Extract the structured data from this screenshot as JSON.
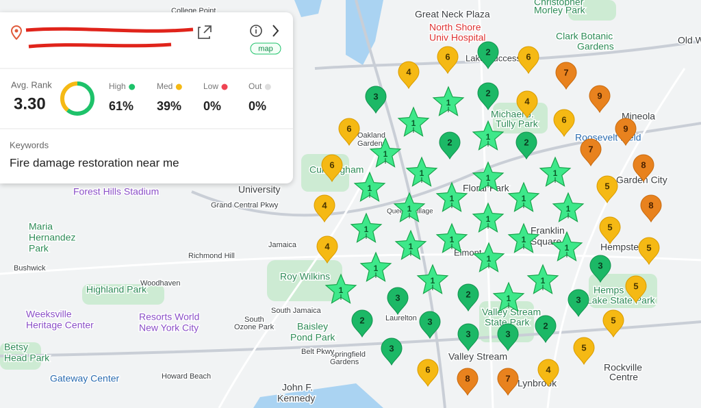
{
  "card": {
    "address_button": "map",
    "avg_rank_label": "Avg. Rank",
    "avg_rank": "3.30",
    "stats": [
      {
        "label": "High",
        "value": 61,
        "value_label": "61%",
        "color": "#1ec26a"
      },
      {
        "label": "Med",
        "value": 39,
        "value_label": "39%",
        "color": "#f5b914"
      },
      {
        "label": "Low",
        "value": 0,
        "value_label": "0%",
        "color": "#ef4453"
      },
      {
        "label": "Out",
        "value": 0,
        "value_label": "0%",
        "color": "#dddddd"
      }
    ],
    "keywords_label": "Keywords",
    "keyword": "Fire damage restoration near me"
  },
  "pins": [
    {
      "shape": "star",
      "color": "#3ee88a",
      "stroke": "#17a34a",
      "text": "#0b5a2a",
      "ranks": [
        1,
        1,
        1,
        1,
        1,
        1,
        1,
        1,
        1,
        1,
        1,
        1,
        1,
        1,
        1,
        1,
        1,
        1,
        1,
        1,
        1,
        1,
        1,
        1
      ]
    },
    {
      "shape": "drop",
      "color": "#1cb866",
      "stroke": "#11924e",
      "text": "#0b3a20",
      "ranks": [
        2,
        2,
        2,
        2,
        2,
        2,
        2
      ]
    },
    {
      "shape": "drop",
      "color": "#1cb866",
      "stroke": "#11924e",
      "text": "#0b3a20",
      "ranks": [
        3,
        3,
        3,
        3,
        3,
        3,
        3,
        3
      ]
    },
    {
      "shape": "drop",
      "color": "#f5b914",
      "stroke": "#d99b00",
      "text": "#4a3500",
      "ranks": [
        4,
        6,
        6,
        4,
        6,
        6,
        6,
        4,
        4,
        5,
        5,
        5,
        5,
        5,
        5,
        4,
        6
      ]
    },
    {
      "shape": "drop",
      "color": "#e8821e",
      "stroke": "#c86a0e",
      "text": "#4a2200",
      "ranks": [
        7,
        9,
        9,
        7,
        8,
        8,
        8,
        7
      ]
    }
  ],
  "places": [
    "Great Neck Plaza",
    "North Shore",
    "Univ Hospital",
    "Clark Botanic",
    "Gardens",
    "Christopher",
    "Morley Park",
    "Mineola",
    "Roosevelt Field",
    "Garden City",
    "Hempstead",
    "Franklin",
    "Square",
    "Floral Park",
    "Elmont",
    "Valley Stream",
    "Valley Stream",
    "State Park",
    "Rockville",
    "Centre",
    "Lynbrook",
    "Forest Hills Stadium",
    "Maria",
    "Hernandez",
    "Park",
    "Highland Park",
    "Weeksville",
    "Heritage Center",
    "Resorts World",
    "New York City",
    "Baisley",
    "Pond Park",
    "Gateway Center",
    "John F.",
    "Kennedy",
    "Roy Wilkins",
    "Jamaica",
    "Richmond Hill",
    "Woodhaven",
    "Bushwick",
    "South Jamaica",
    "South",
    "Ozone Park",
    "Howard Beach",
    "Laurelton",
    "Springfield",
    "Gardens",
    "Queens Village",
    "University",
    "Cunningham",
    "Michael J.",
    "Tully Park",
    "Hemps",
    "Lake State Park",
    "Betsy",
    "Head Park",
    "College Point",
    "Lake Success",
    "Oakland",
    "Gardens",
    "Old W",
    "Belt Pkwy",
    "Grand Central Pkwy"
  ]
}
